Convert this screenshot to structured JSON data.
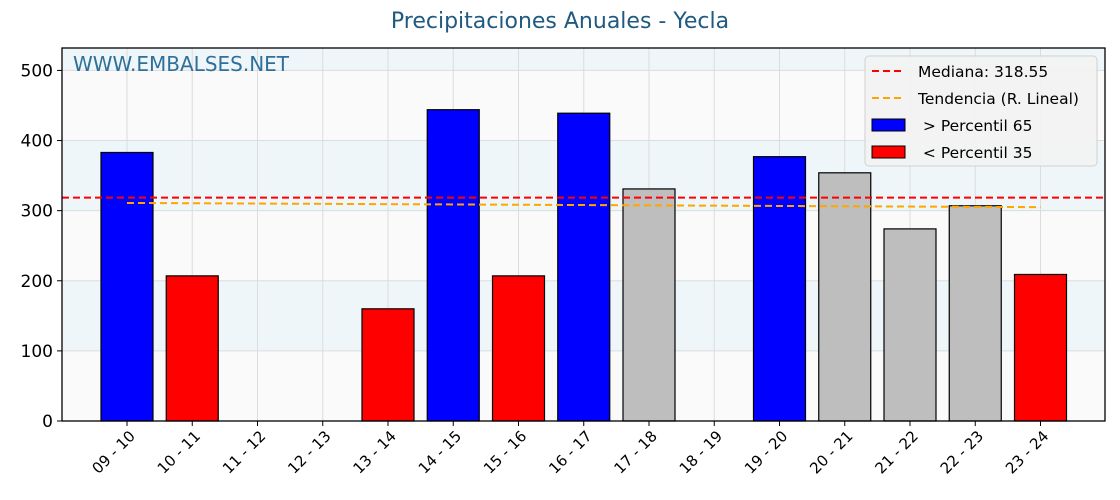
{
  "chart_data": {
    "type": "bar",
    "title": "Precipitaciones Anuales - Yecla",
    "xlabel": "",
    "ylabel": "",
    "ylim": [
      0,
      532
    ],
    "yticks": [
      0,
      100,
      200,
      300,
      400,
      500
    ],
    "grid": true,
    "watermark": "WWW.EMBALSES.NET",
    "categories": [
      "09 - 10",
      "10 - 11",
      "11 - 12",
      "12 - 13",
      "13 - 14",
      "14 - 15",
      "15 - 16",
      "16 - 17",
      "17 - 18",
      "18 - 19",
      "19 - 20",
      "20 - 21",
      "21 - 22",
      "22 - 23",
      "23 - 24"
    ],
    "values": [
      383,
      207,
      null,
      null,
      160,
      444,
      207,
      439,
      331,
      null,
      377,
      354,
      274,
      307,
      209
    ],
    "bar_classes": [
      "high",
      "low",
      "none",
      "none",
      "low",
      "high",
      "low",
      "high",
      "mid",
      "none",
      "high",
      "mid",
      "mid",
      "mid",
      "low"
    ],
    "median": 318.55,
    "trend": {
      "start": 311,
      "end": 305
    },
    "legend": {
      "position": "upper right",
      "entries": [
        {
          "label": "Mediana: 318.55",
          "type": "line",
          "color": "#ff0000",
          "style": "dashed"
        },
        {
          "label": "Tendencia (R. Lineal)",
          "type": "line",
          "color": "#ffa500",
          "style": "dashed"
        },
        {
          "label": " > Percentil 65",
          "type": "patch",
          "color": "#0000ff"
        },
        {
          "label": " < Percentil 35",
          "type": "patch",
          "color": "#ff0000"
        }
      ]
    },
    "colors": {
      "high": "#0000ff",
      "low": "#ff0000",
      "mid": "#bebebe",
      "median": "#ff0000",
      "trend": "#ffa500",
      "title": "#1f5a80",
      "watermark": "#2f6f99"
    }
  }
}
